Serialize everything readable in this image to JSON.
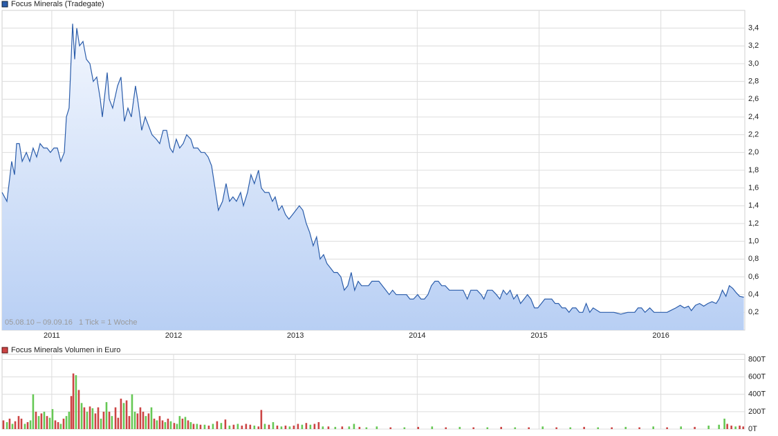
{
  "chart_data": [
    {
      "type": "area",
      "series": [
        {
          "name": "Focus Minerals (Tradegate)",
          "color": "#2a5caa",
          "x": [
            2010.592,
            2010.632,
            2010.671,
            2010.694,
            2010.711,
            2010.734,
            2010.757,
            2010.791,
            2010.819,
            2010.847,
            2010.876,
            2010.904,
            2010.933,
            2010.961,
            2010.989,
            2011.018,
            2011.046,
            2011.074,
            2011.103,
            2011.12,
            2011.142,
            2011.171,
            2011.188,
            2011.205,
            2011.228,
            2011.256,
            2011.284,
            2011.313,
            2011.341,
            2011.369,
            2011.398,
            2011.415,
            2011.455,
            2011.472,
            2011.5,
            2011.54,
            2011.568,
            2011.596,
            2011.625,
            2011.653,
            2011.687,
            2011.71,
            2011.738,
            2011.767,
            2011.795,
            2011.823,
            2011.858,
            2011.886,
            2011.914,
            2011.943,
            2011.971,
            2011.994,
            2012.022,
            2012.05,
            2012.079,
            2012.107,
            2012.141,
            2012.164,
            2012.198,
            2012.226,
            2012.255,
            2012.283,
            2012.312,
            2012.34,
            2012.368,
            2012.402,
            2012.431,
            2012.459,
            2012.487,
            2012.516,
            2012.55,
            2012.573,
            2012.607,
            2012.635,
            2012.663,
            2012.697,
            2012.72,
            2012.749,
            2012.783,
            2012.811,
            2012.834,
            2012.862,
            2012.89,
            2012.919,
            2012.947,
            2012.976,
            2013.004,
            2013.032,
            2013.061,
            2013.089,
            2013.117,
            2013.146,
            2013.174,
            2013.203,
            2013.231,
            2013.259,
            2013.288,
            2013.316,
            2013.344,
            2013.373,
            2013.401,
            2013.43,
            2013.458,
            2013.486,
            2013.515,
            2013.543,
            2013.571,
            2013.6,
            2013.628,
            2013.657,
            2013.685,
            2013.713,
            2013.742,
            2013.77,
            2013.798,
            2013.827,
            2013.855,
            2013.884,
            2013.912,
            2013.94,
            2013.969,
            2014.003,
            2014.031,
            2014.059,
            2014.088,
            2014.116,
            2014.145,
            2014.173,
            2014.201,
            2014.23,
            2014.264,
            2014.32,
            2014.377,
            2014.411,
            2014.44,
            2014.491,
            2014.525,
            2014.547,
            2014.576,
            2014.616,
            2014.65,
            2014.678,
            2014.706,
            2014.735,
            2014.763,
            2014.792,
            2014.82,
            2014.848,
            2014.877,
            2014.905,
            2014.933,
            2014.962,
            2014.99,
            2015.019,
            2015.047,
            2015.075,
            2015.104,
            2015.132,
            2015.16,
            2015.189,
            2015.217,
            2015.246,
            2015.274,
            2015.302,
            2015.331,
            2015.359,
            2015.387,
            2015.416,
            2015.444,
            2015.501,
            2015.558,
            2015.614,
            2015.671,
            2015.728,
            2015.785,
            2015.813,
            2015.841,
            2015.87,
            2015.909,
            2015.944,
            2015.983,
            2016.023,
            2016.051,
            2016.078,
            2016.123,
            2016.159,
            2016.193,
            2016.227,
            2016.25,
            2016.284,
            2016.318,
            2016.352,
            2016.386,
            2016.42,
            2016.454,
            2016.477,
            2016.505,
            2016.534,
            2016.562,
            2016.59,
            2016.619,
            2016.647,
            2016.681
          ],
          "values": [
            1.55,
            1.45,
            1.9,
            1.75,
            2.1,
            2.1,
            1.9,
            2.0,
            1.9,
            2.05,
            1.95,
            2.1,
            2.05,
            2.05,
            2.0,
            2.05,
            2.05,
            1.9,
            2.0,
            2.4,
            2.5,
            3.45,
            3.05,
            3.4,
            3.2,
            3.25,
            3.05,
            3.0,
            2.8,
            2.85,
            2.6,
            2.4,
            2.9,
            2.6,
            2.5,
            2.75,
            2.85,
            2.35,
            2.5,
            2.4,
            2.75,
            2.55,
            2.25,
            2.4,
            2.3,
            2.2,
            2.15,
            2.1,
            2.25,
            2.25,
            2.05,
            2.0,
            2.15,
            2.05,
            2.1,
            2.2,
            2.15,
            2.05,
            2.05,
            2.0,
            2.0,
            1.95,
            1.85,
            1.6,
            1.35,
            1.45,
            1.65,
            1.45,
            1.5,
            1.45,
            1.55,
            1.4,
            1.55,
            1.75,
            1.65,
            1.8,
            1.6,
            1.55,
            1.55,
            1.45,
            1.5,
            1.35,
            1.4,
            1.3,
            1.25,
            1.3,
            1.35,
            1.4,
            1.35,
            1.2,
            1.1,
            0.95,
            1.05,
            0.8,
            0.85,
            0.75,
            0.7,
            0.65,
            0.65,
            0.6,
            0.45,
            0.5,
            0.65,
            0.45,
            0.55,
            0.5,
            0.5,
            0.5,
            0.55,
            0.55,
            0.55,
            0.5,
            0.45,
            0.4,
            0.45,
            0.4,
            0.4,
            0.4,
            0.4,
            0.35,
            0.35,
            0.4,
            0.35,
            0.35,
            0.4,
            0.5,
            0.55,
            0.55,
            0.5,
            0.5,
            0.45,
            0.45,
            0.45,
            0.35,
            0.45,
            0.45,
            0.4,
            0.35,
            0.45,
            0.45,
            0.4,
            0.35,
            0.45,
            0.4,
            0.45,
            0.35,
            0.4,
            0.3,
            0.35,
            0.4,
            0.35,
            0.25,
            0.25,
            0.3,
            0.35,
            0.35,
            0.35,
            0.3,
            0.3,
            0.25,
            0.25,
            0.2,
            0.25,
            0.25,
            0.2,
            0.2,
            0.3,
            0.2,
            0.25,
            0.2,
            0.2,
            0.2,
            0.18,
            0.2,
            0.2,
            0.25,
            0.25,
            0.2,
            0.25,
            0.2,
            0.2,
            0.2,
            0.2,
            0.22,
            0.25,
            0.28,
            0.25,
            0.27,
            0.22,
            0.28,
            0.3,
            0.27,
            0.3,
            0.32,
            0.3,
            0.35,
            0.45,
            0.38,
            0.5,
            0.47,
            0.42,
            0.38,
            0.37
          ]
        }
      ],
      "xlim": [
        2010.592,
        2016.689
      ],
      "xticks": [
        2011,
        2012,
        2013,
        2014,
        2015,
        2016
      ],
      "ylim": [
        0,
        3.6
      ],
      "yticks": [
        {
          "value": 0.2,
          "label": "0,2"
        },
        {
          "value": 0.4,
          "label": "0,4"
        },
        {
          "value": 0.6,
          "label": "0,6"
        },
        {
          "value": 0.8,
          "label": "0,8"
        },
        {
          "value": 1.0,
          "label": "1,0"
        },
        {
          "value": 1.2,
          "label": "1,2"
        },
        {
          "value": 1.4,
          "label": "1,4"
        },
        {
          "value": 1.6,
          "label": "1,6"
        },
        {
          "value": 1.8,
          "label": "1,8"
        },
        {
          "value": 2.0,
          "label": "2,0"
        },
        {
          "value": 2.2,
          "label": "2,2"
        },
        {
          "value": 2.4,
          "label": "2,4"
        },
        {
          "value": 2.6,
          "label": "2,6"
        },
        {
          "value": 2.8,
          "label": "2,8"
        },
        {
          "value": 3.0,
          "label": "3,0"
        },
        {
          "value": 3.2,
          "label": "3,2"
        },
        {
          "value": 3.4,
          "label": "3,4"
        }
      ],
      "annotation": "05.08.10 – 09.09.16   1 Tick = 1 Woche",
      "grid": true
    },
    {
      "type": "bar",
      "title": "Focus Minerals Volumen in Euro",
      "series": [
        {
          "color": "#66c855",
          "x": [
            2010.632,
            2010.677,
            2010.779,
            2010.825,
            2010.847,
            2010.893,
            2010.938,
            2010.984,
            2011.006,
            2011.074,
            2011.12,
            2011.142,
            2011.199,
            2011.245,
            2011.29,
            2011.335,
            2011.404,
            2011.449,
            2011.494,
            2011.591,
            2011.659,
            2011.682,
            2011.772,
            2011.818,
            2011.863,
            2011.931,
            2011.977,
            2012.028,
            2012.05,
            2012.096,
            2012.141,
            2012.192,
            2012.255,
            2012.323,
            2012.391,
            2012.459,
            2012.527,
            2012.663,
            2012.749,
            2012.817,
            2012.885,
            2012.953,
            2013.055,
            2013.123,
            2013.225,
            2013.327,
            2013.441,
            2013.481,
            2013.583,
            2013.668,
            2013.895,
            2014.122,
            2014.349,
            2014.576,
            2014.803,
            2015.03,
            2015.257,
            2015.484,
            2015.711,
            2015.938,
            2016.165,
            2016.392,
            2016.477,
            2016.522,
            2016.613
          ],
          "values": [
            80,
            60,
            60,
            100,
            400,
            150,
            200,
            130,
            230,
            60,
            150,
            200,
            620,
            300,
            200,
            240,
            120,
            310,
            150,
            300,
            400,
            200,
            150,
            250,
            100,
            80,
            90,
            60,
            150,
            140,
            80,
            60,
            50,
            60,
            70,
            40,
            60,
            40,
            60,
            80,
            30,
            30,
            50,
            50,
            30,
            25,
            30,
            60,
            20,
            30,
            20,
            30,
            25,
            20,
            20,
            30,
            20,
            20,
            25,
            30,
            30,
            40,
            50,
            120,
            30
          ]
        },
        {
          "color": "#cc4444",
          "x": [
            2010.603,
            2010.654,
            2010.7,
            2010.728,
            2010.751,
            2010.802,
            2010.87,
            2010.915,
            2010.961,
            2011.029,
            2011.052,
            2011.097,
            2011.16,
            2011.177,
            2011.222,
            2011.267,
            2011.313,
            2011.358,
            2011.381,
            2011.426,
            2011.472,
            2011.523,
            2011.545,
            2011.568,
            2011.614,
            2011.636,
            2011.704,
            2011.727,
            2011.75,
            2011.795,
            2011.841,
            2011.886,
            2011.909,
            2011.954,
            2012.005,
            2012.073,
            2012.119,
            2012.164,
            2012.221,
            2012.289,
            2012.357,
            2012.425,
            2012.493,
            2012.561,
            2012.595,
            2012.629,
            2012.697,
            2012.72,
            2012.783,
            2012.851,
            2012.919,
            2012.987,
            2013.021,
            2013.089,
            2013.157,
            2013.191,
            2013.271,
            2013.384,
            2013.526,
            2013.781,
            2014.008,
            2014.235,
            2014.462,
            2014.689,
            2014.916,
            2015.143,
            2015.37,
            2015.597,
            2015.824,
            2016.051,
            2016.278,
            2016.545,
            2016.579,
            2016.647,
            2016.676
          ],
          "values": [
            100,
            120,
            90,
            150,
            120,
            80,
            200,
            180,
            150,
            100,
            80,
            120,
            380,
            640,
            450,
            250,
            260,
            180,
            250,
            200,
            200,
            250,
            130,
            350,
            330,
            150,
            180,
            250,
            200,
            180,
            120,
            150,
            100,
            120,
            70,
            120,
            100,
            60,
            50,
            40,
            90,
            110,
            50,
            40,
            60,
            50,
            30,
            220,
            50,
            40,
            40,
            40,
            60,
            70,
            60,
            80,
            30,
            30,
            25,
            20,
            25,
            20,
            20,
            25,
            20,
            20,
            25,
            20,
            20,
            20,
            25,
            60,
            40,
            40,
            30
          ]
        }
      ],
      "xlim": [
        2010.592,
        2016.689
      ],
      "ylim": [
        0,
        860
      ],
      "yticks": [
        {
          "value": 0,
          "label": "0T"
        },
        {
          "value": 200,
          "label": "200T"
        },
        {
          "value": 400,
          "label": "400T"
        },
        {
          "value": 600,
          "label": "600T"
        },
        {
          "value": 800,
          "label": "800T"
        }
      ],
      "grid": true
    }
  ]
}
